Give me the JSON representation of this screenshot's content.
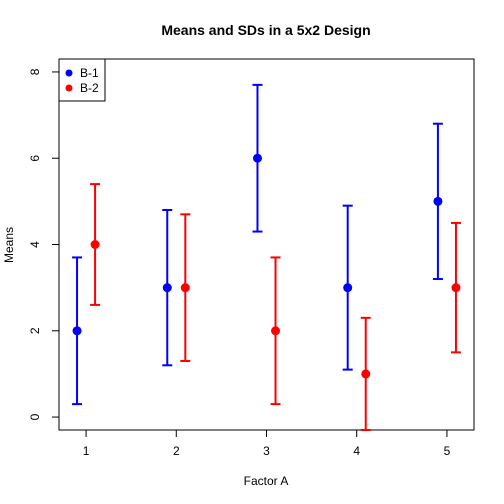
{
  "chart_data": {
    "type": "scatter",
    "title": "Means and SDs in a 5x2 Design",
    "xlabel": "Factor A",
    "ylabel": "Means",
    "categories": [
      "1",
      "2",
      "3",
      "4",
      "5"
    ],
    "yticks": [
      "0",
      "2",
      "4",
      "6",
      "8"
    ],
    "ylim": [
      -0.3,
      8.3
    ],
    "xlim": [
      0.7,
      5.3
    ],
    "grid": false,
    "legend_position": "top-left",
    "series": [
      {
        "name": "B-1",
        "color": "#0000ff",
        "x": [
          0.9,
          1.9,
          2.9,
          3.9,
          4.9
        ],
        "means": [
          2,
          3,
          6,
          3,
          5
        ],
        "lower": [
          0.3,
          1.2,
          4.3,
          1.1,
          3.2
        ],
        "upper": [
          3.7,
          4.8,
          7.7,
          4.9,
          6.8
        ]
      },
      {
        "name": "B-2",
        "color": "#ff0000",
        "x": [
          1.1,
          2.1,
          3.1,
          4.1,
          5.1
        ],
        "means": [
          4,
          3,
          2,
          1,
          3
        ],
        "lower": [
          2.6,
          1.3,
          0.3,
          -0.3,
          1.5
        ],
        "upper": [
          5.4,
          4.7,
          3.7,
          2.3,
          4.5
        ]
      }
    ]
  }
}
